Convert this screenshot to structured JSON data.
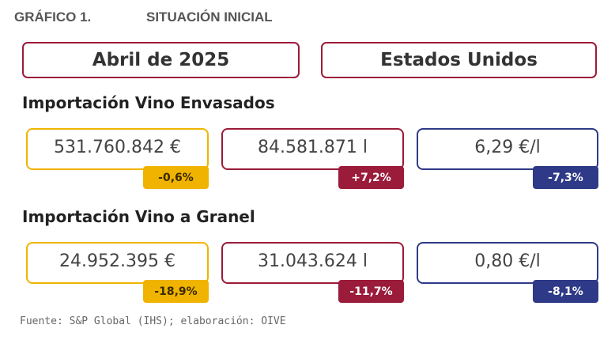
{
  "header": {
    "label": "GRÁFICO 1.",
    "title": "SITUACIÓN INICIAL"
  },
  "boxes": [
    "Abril de 2025",
    "Estados Unidos"
  ],
  "sections": [
    {
      "title": "Importación Vino Envasados",
      "cards": [
        {
          "value": "531.760.842 €",
          "change": "-0,6%"
        },
        {
          "value": "84.581.871 l",
          "change": "+7,2%"
        },
        {
          "value": "6,29 €/l",
          "change": "-7,3%"
        }
      ]
    },
    {
      "title": "Importación Vino a Granel",
      "cards": [
        {
          "value": "24.952.395 €",
          "change": "-18,9%"
        },
        {
          "value": "31.043.624 l",
          "change": "-11,7%"
        },
        {
          "value": "0,80 €/l",
          "change": "-8,1%"
        }
      ]
    }
  ],
  "source": "Fuente: S&P Global (IHS); elaboración: OIVE"
}
